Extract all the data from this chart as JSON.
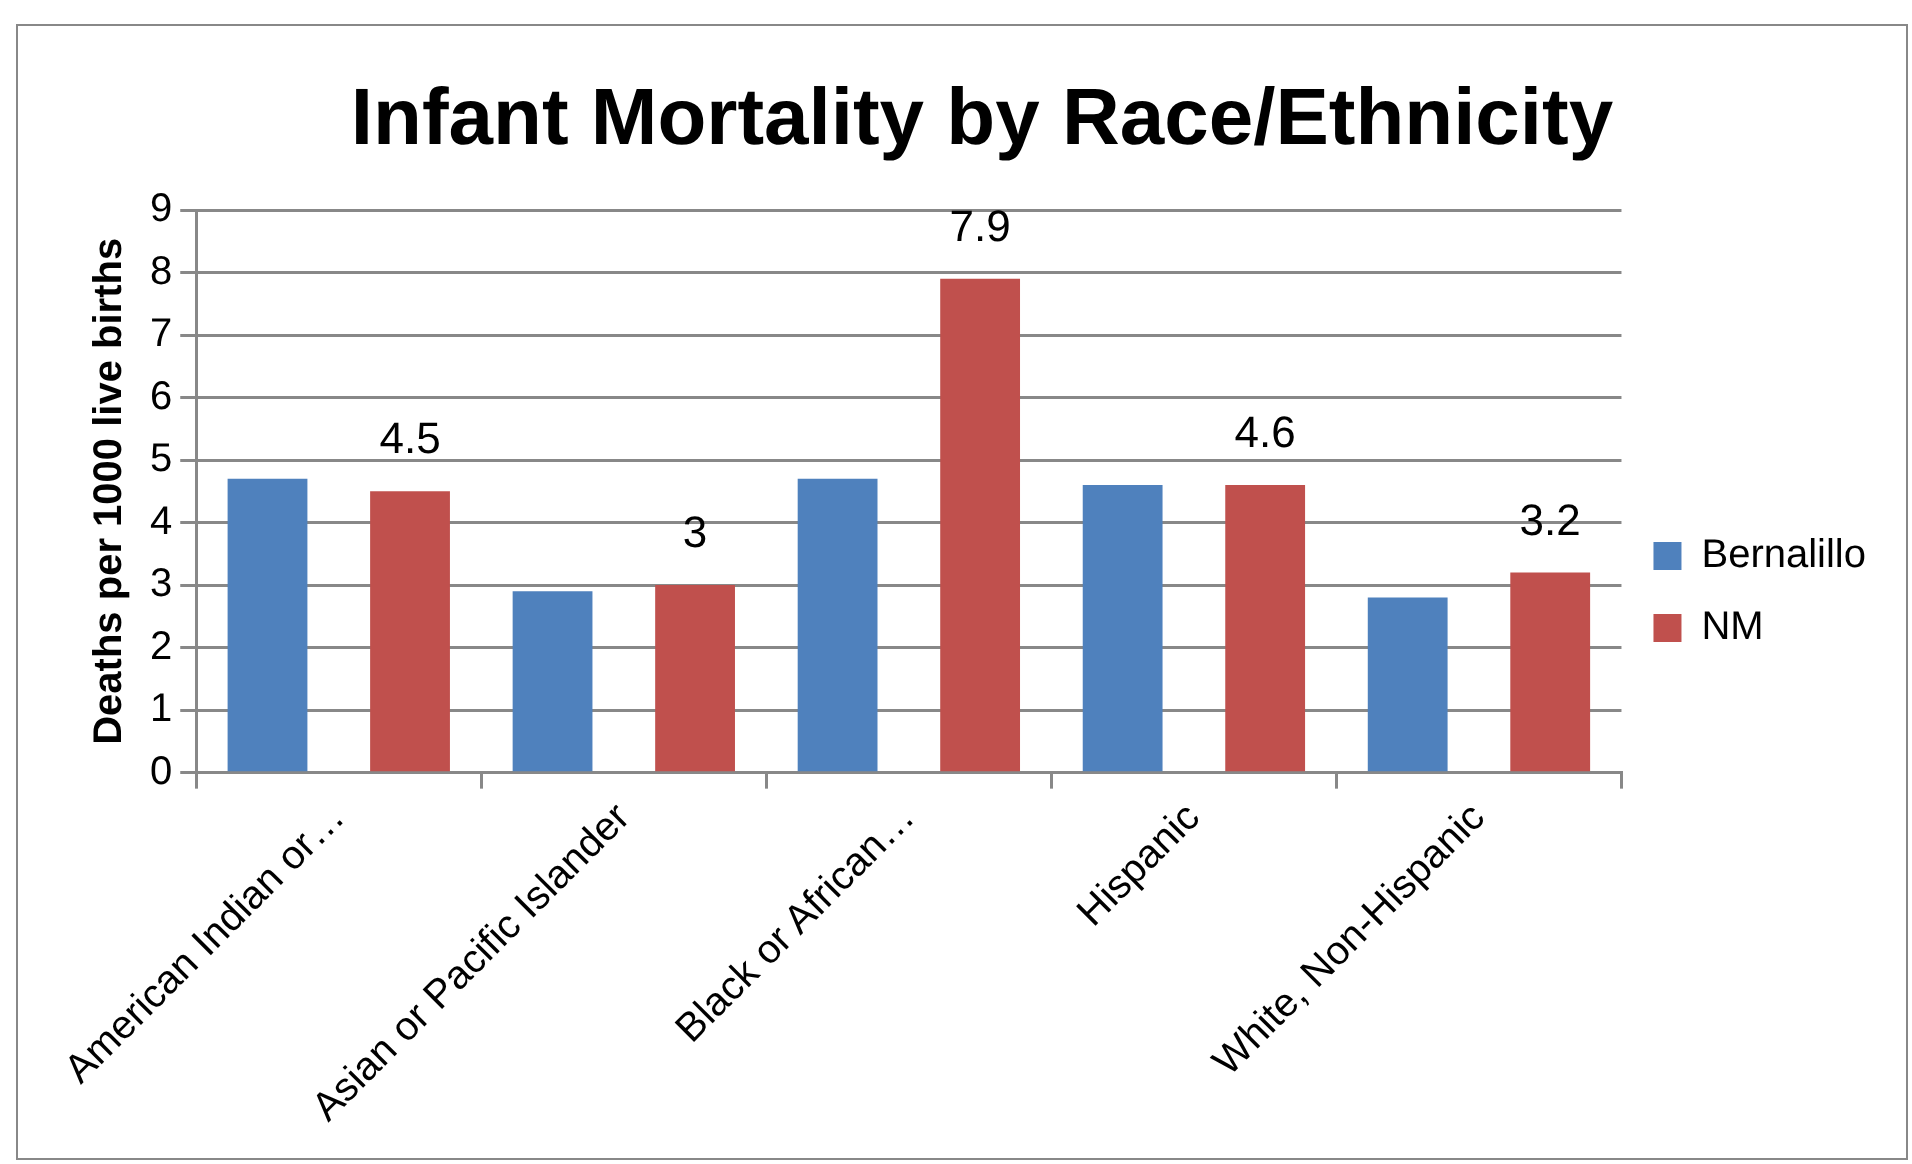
{
  "chart_data": {
    "type": "bar",
    "title": "Infant Mortality by Race/Ethnicity",
    "ylabel": "Deaths per 1000 live births",
    "categories": [
      "American Indian or…",
      "Asian or Pacific Islander",
      "Black or African…",
      "Hispanic",
      "White, Non-Hispanic"
    ],
    "series": [
      {
        "name": "Bernalillo",
        "color": "#4f81bd",
        "values": [
          4.7,
          2.9,
          4.7,
          4.6,
          2.8
        ]
      },
      {
        "name": "NM",
        "color": "#c0504d",
        "values": [
          4.5,
          3,
          7.9,
          4.6,
          3.2
        ],
        "value_labels": [
          "4.5",
          "3",
          "7.9",
          "4.6",
          "3.2"
        ]
      }
    ],
    "ylim": [
      0,
      9
    ],
    "yticks": [
      0,
      1,
      2,
      3,
      4,
      5,
      6,
      7,
      8,
      9
    ],
    "grid": "y",
    "legend": "right"
  }
}
